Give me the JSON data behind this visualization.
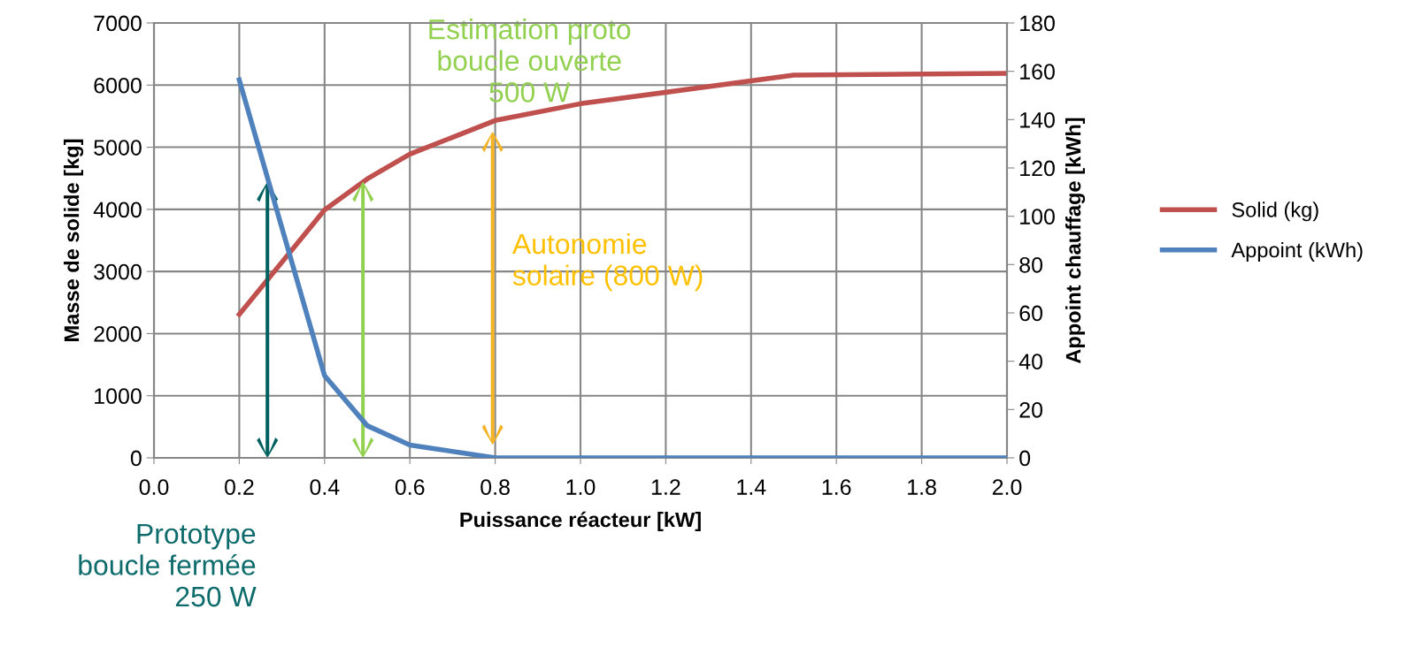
{
  "chart_data": {
    "type": "line",
    "xlabel": "Puissance réacteur [kW]",
    "ylabel": "Masse de solide [kg]",
    "y2label": "Appoint chauffage [kWh]",
    "x": [
      0.2,
      0.4,
      0.5,
      0.6,
      0.8,
      1.0,
      1.5,
      2.0
    ],
    "series": [
      {
        "name": "Solid (kg)",
        "color": "#c0504d",
        "values": [
          2310,
          3990,
          4490,
          4890,
          5430,
          5700,
          6160,
          6190
        ]
      },
      {
        "name": "Appoint (kWh)",
        "color": "#4f81bd",
        "axis": "y2",
        "values": [
          156.4,
          34,
          13.3,
          5.3,
          0,
          0,
          0,
          0
        ]
      }
    ],
    "xlim": [
      0.0,
      2.0
    ],
    "xticks": [
      {
        "value": 0.0,
        "label": "0.0"
      },
      0.2,
      0.4,
      0.6,
      0.8,
      {
        "value": 1.0,
        "label": "1.0"
      },
      1.2,
      1.4,
      1.6,
      1.8,
      {
        "value": 2.0,
        "label": "2.0"
      }
    ],
    "ylim": [
      0,
      7000
    ],
    "yticks": [
      0,
      1000,
      2000,
      3000,
      4000,
      5000,
      6000,
      7000
    ],
    "y2lim": [
      0,
      180
    ],
    "y2ticks": [
      0,
      20,
      40,
      60,
      80,
      100,
      120,
      140,
      160,
      180
    ],
    "grid": true,
    "legend": "right",
    "marker": "none",
    "line_style": "solid",
    "annotations": [
      "Estimation proto\nboucle ouverte\n500 W",
      "Autonomie\nsolaire (800 W)",
      "Prototype\nboucle fermée\n250 W"
    ]
  }
}
